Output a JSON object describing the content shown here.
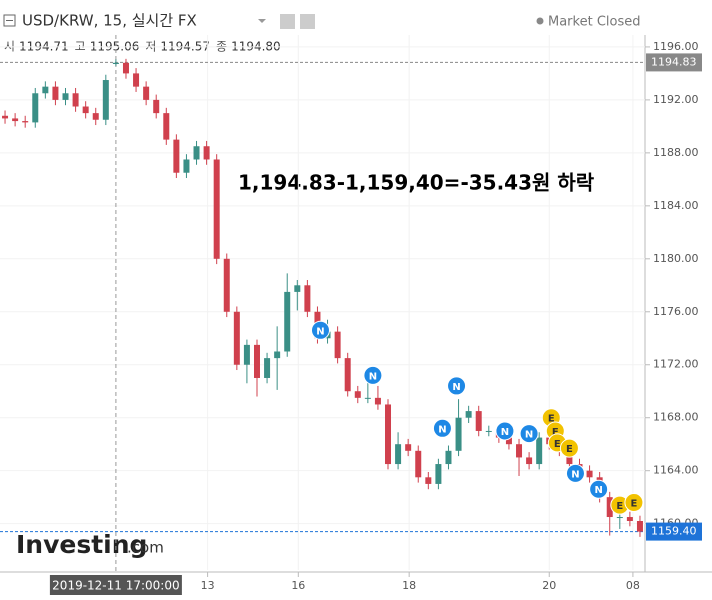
{
  "chart_data": {
    "type": "candlestick",
    "title": "USD/KRW, 15, 실시간 FX",
    "status": "Market Closed",
    "annotation": "1,194.83-1,159,40=-35.43원 하락",
    "logo": {
      "name": "Investing",
      "suffix": ".com"
    },
    "crosshair": {
      "label": "2019-12-11 17:00:00",
      "index": 11,
      "values": [
        {
          "name": "시",
          "value": 1194.71
        },
        {
          "name": "고",
          "value": 1195.06
        },
        {
          "name": "저",
          "value": 1194.57
        },
        {
          "name": "종",
          "value": 1194.8,
          "label": "1194.80"
        }
      ]
    },
    "up_color": "#3a8f86",
    "down_color": "#d0404d",
    "open": [
      1190.8,
      1190.6,
      1190.4,
      1190.3,
      1192.5,
      1193,
      1192,
      1192.5,
      1191.5,
      1191,
      1190.5,
      1194.71,
      1194.8,
      1194,
      1193,
      1192,
      1191,
      1189,
      1186.5,
      1187.5,
      1188.5,
      1187.5,
      1180,
      1176,
      1172,
      1173.5,
      1171,
      1172.5,
      1173,
      1177.5,
      1178,
      1176,
      1174,
      1174.5,
      1172.5,
      1170,
      1169.5,
      1169.5,
      1169,
      1164.5,
      1166,
      1165.5,
      1163.5,
      1163,
      1164.5,
      1165.5,
      1168,
      1168.5,
      1167,
      1167,
      1166.5,
      1166,
      1165,
      1164.5,
      1166.5,
      1166,
      1165.5,
      1164.5,
      1164,
      1163.5,
      1162,
      1160.5,
      1160.5,
      1160.2
    ],
    "high": [
      1191.2,
      1191,
      1190.8,
      1192.9,
      1193.4,
      1193.4,
      1192.9,
      1192.9,
      1191.9,
      1191.4,
      1193.9,
      1195.06,
      1195.1,
      1194.4,
      1193.4,
      1192.4,
      1191.4,
      1189.4,
      1187.9,
      1188.9,
      1188.9,
      1187.9,
      1180.4,
      1176.4,
      1173.9,
      1173.9,
      1172.9,
      1174.9,
      1178.9,
      1178.4,
      1178.4,
      1176.4,
      1175.4,
      1174.9,
      1172.9,
      1170.4,
      1170.9,
      1170.4,
      1169.4,
      1166.9,
      1166.4,
      1165.9,
      1163.9,
      1164.9,
      1165.9,
      1169.4,
      1168.9,
      1168.9,
      1167.4,
      1167.4,
      1166.9,
      1166.4,
      1165.4,
      1166.9,
      1166.9,
      1166.4,
      1165.9,
      1164.9,
      1164.4,
      1163.9,
      1162.4,
      1160.9,
      1160.9,
      1160.6
    ],
    "low": [
      1190.2,
      1190,
      1189.9,
      1189.9,
      1192.1,
      1191.6,
      1191.6,
      1191.1,
      1190.6,
      1190.1,
      1190.1,
      1194.57,
      1193.6,
      1192.6,
      1191.6,
      1190.6,
      1188.6,
      1186.1,
      1186.1,
      1187.1,
      1187.1,
      1179.6,
      1175.6,
      1171.6,
      1170.6,
      1169.6,
      1170.6,
      1170.1,
      1172.6,
      1176.1,
      1175.6,
      1173.6,
      1173.6,
      1172.1,
      1169.6,
      1169.1,
      1169.1,
      1168.6,
      1164.1,
      1164.1,
      1165.1,
      1163.1,
      1162.6,
      1162.6,
      1164.1,
      1165.1,
      1167.6,
      1166.6,
      1166.6,
      1166.1,
      1165.6,
      1163.6,
      1164.1,
      1164.1,
      1165.6,
      1165.1,
      1164.1,
      1163.6,
      1163.1,
      1161.6,
      1159.1,
      1159.6,
      1159.8,
      1159
    ],
    "close": [
      1190.6,
      1190.4,
      1190.3,
      1192.5,
      1193,
      1192,
      1192.5,
      1191.5,
      1191,
      1190.5,
      1193.5,
      1194.8,
      1194,
      1193,
      1192,
      1191,
      1189,
      1186.5,
      1187.5,
      1188.5,
      1187.5,
      1180,
      1176,
      1172,
      1173.5,
      1171,
      1172.5,
      1173,
      1177.5,
      1178,
      1176,
      1174,
      1174.5,
      1172.5,
      1170,
      1169.5,
      1169.5,
      1169,
      1164.5,
      1166,
      1165.5,
      1163.5,
      1163,
      1164.5,
      1165.5,
      1168,
      1168.5,
      1167,
      1167,
      1166.5,
      1166,
      1165,
      1164.5,
      1166.5,
      1166,
      1165.5,
      1164.5,
      1164,
      1163.5,
      1162,
      1160.5,
      1160.5,
      1160.2,
      1159.4
    ],
    "xlim": [
      0,
      64
    ],
    "xticks": [
      {
        "value": 20.6,
        "label": "13"
      },
      {
        "value": 29.6,
        "label": "16"
      },
      {
        "value": 40.6,
        "label": "18"
      },
      {
        "value": 54.5,
        "label": "20"
      },
      {
        "value": 62.8,
        "label": "08"
      }
    ],
    "ylim": [
      1156.5,
      1196.9
    ],
    "yticks": [
      {
        "value": 1160,
        "label": "1160.00"
      },
      {
        "value": 1164,
        "label": "1164.00"
      },
      {
        "value": 1168,
        "label": "1168.00"
      },
      {
        "value": 1172,
        "label": "1172.00"
      },
      {
        "value": 1176,
        "label": "1176.00"
      },
      {
        "value": 1180,
        "label": "1180.00"
      },
      {
        "value": 1184,
        "label": "1184.00"
      },
      {
        "value": 1188,
        "label": "1188.00"
      },
      {
        "value": 1192,
        "label": "1192.00"
      },
      {
        "value": 1196,
        "label": "1196.00"
      }
    ],
    "grid": true,
    "price_lines": [
      {
        "value": 1194.83,
        "label": "1194.83",
        "color": "#888888"
      },
      {
        "value": 1159.4,
        "label": "1159.40",
        "color": "#1e73d8"
      }
    ],
    "events": [
      {
        "label": "N",
        "x": 31.8,
        "y": 1174.6,
        "color": "#1e88e5"
      },
      {
        "label": "N",
        "x": 37,
        "y": 1171.2,
        "color": "#1e88e5"
      },
      {
        "label": "N",
        "x": 45.3,
        "y": 1170.4,
        "color": "#1e88e5"
      },
      {
        "label": "N",
        "x": 43.9,
        "y": 1167.2,
        "color": "#1e88e5"
      },
      {
        "label": "N",
        "x": 50.1,
        "y": 1167,
        "color": "#1e88e5"
      },
      {
        "label": "N",
        "x": 52.5,
        "y": 1166.8,
        "color": "#1e88e5"
      },
      {
        "label": "N",
        "x": 57.1,
        "y": 1163.8,
        "color": "#1e88e5"
      },
      {
        "label": "N",
        "x": 59.4,
        "y": 1162.6,
        "color": "#1e88e5"
      },
      {
        "label": "E",
        "x": 54.7,
        "y": 1168,
        "color": "#f2c200"
      },
      {
        "label": "E",
        "x": 55.1,
        "y": 1167,
        "color": "#f2c200"
      },
      {
        "label": "E",
        "x": 55.3,
        "y": 1166.1,
        "color": "#f2c200"
      },
      {
        "label": "E",
        "x": 56.5,
        "y": 1165.7,
        "color": "#f2c200"
      },
      {
        "label": "E",
        "x": 61.5,
        "y": 1161.4,
        "color": "#f2c200"
      },
      {
        "label": "E",
        "x": 62.9,
        "y": 1161.6,
        "color": "#f2c200"
      }
    ]
  }
}
